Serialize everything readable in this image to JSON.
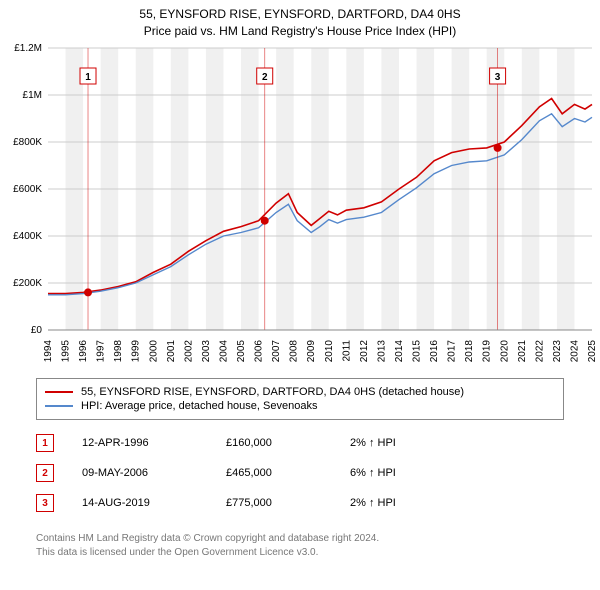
{
  "title_line1": "55, EYNSFORD RISE, EYNSFORD, DARTFORD, DA4 0HS",
  "title_line2": "Price paid vs. HM Land Registry's House Price Index (HPI)",
  "chart": {
    "type": "line",
    "background_color": "#ffffff",
    "grid_color": "#cccccc",
    "band_color": "#f0f0f0",
    "axis_font_size": 10,
    "x_years": [
      1994,
      1995,
      1996,
      1997,
      1998,
      1999,
      2000,
      2001,
      2002,
      2003,
      2004,
      2005,
      2006,
      2007,
      2008,
      2009,
      2010,
      2011,
      2012,
      2013,
      2014,
      2015,
      2016,
      2017,
      2018,
      2019,
      2020,
      2021,
      2022,
      2023,
      2024,
      2025
    ],
    "y": {
      "min": 0,
      "max": 1200000,
      "step": 200000,
      "labels": [
        "£0",
        "£200K",
        "£400K",
        "£600K",
        "£800K",
        "£1M",
        "£1.2M"
      ]
    },
    "series": [
      {
        "name": "55, EYNSFORD RISE, EYNSFORD, DARTFORD, DA4 0HS (detached house)",
        "color": "#d00000",
        "width": 1.6,
        "points": [
          [
            1994,
            155000
          ],
          [
            1995,
            155000
          ],
          [
            1996,
            160000
          ],
          [
            1997,
            170000
          ],
          [
            1998,
            185000
          ],
          [
            1999,
            205000
          ],
          [
            2000,
            245000
          ],
          [
            2001,
            280000
          ],
          [
            2002,
            335000
          ],
          [
            2003,
            380000
          ],
          [
            2004,
            420000
          ],
          [
            2005,
            440000
          ],
          [
            2006,
            465000
          ],
          [
            2007,
            540000
          ],
          [
            2007.7,
            580000
          ],
          [
            2008.2,
            500000
          ],
          [
            2009,
            445000
          ],
          [
            2009.5,
            475000
          ],
          [
            2010,
            505000
          ],
          [
            2010.5,
            490000
          ],
          [
            2011,
            510000
          ],
          [
            2012,
            520000
          ],
          [
            2013,
            545000
          ],
          [
            2014,
            600000
          ],
          [
            2015,
            650000
          ],
          [
            2016,
            720000
          ],
          [
            2017,
            755000
          ],
          [
            2018,
            770000
          ],
          [
            2019,
            775000
          ],
          [
            2020,
            800000
          ],
          [
            2021,
            870000
          ],
          [
            2022,
            950000
          ],
          [
            2022.7,
            985000
          ],
          [
            2023.3,
            920000
          ],
          [
            2024,
            960000
          ],
          [
            2024.6,
            940000
          ],
          [
            2025,
            960000
          ]
        ]
      },
      {
        "name": "HPI: Average price, detached house, Sevenoaks",
        "color": "#5588cc",
        "width": 1.4,
        "points": [
          [
            1994,
            150000
          ],
          [
            1995,
            150000
          ],
          [
            1996,
            155000
          ],
          [
            1997,
            165000
          ],
          [
            1998,
            180000
          ],
          [
            1999,
            200000
          ],
          [
            2000,
            235000
          ],
          [
            2001,
            270000
          ],
          [
            2002,
            320000
          ],
          [
            2003,
            365000
          ],
          [
            2004,
            400000
          ],
          [
            2005,
            415000
          ],
          [
            2006,
            435000
          ],
          [
            2007,
            500000
          ],
          [
            2007.7,
            535000
          ],
          [
            2008.2,
            465000
          ],
          [
            2009,
            415000
          ],
          [
            2009.5,
            440000
          ],
          [
            2010,
            470000
          ],
          [
            2010.5,
            455000
          ],
          [
            2011,
            470000
          ],
          [
            2012,
            480000
          ],
          [
            2013,
            500000
          ],
          [
            2014,
            555000
          ],
          [
            2015,
            605000
          ],
          [
            2016,
            665000
          ],
          [
            2017,
            700000
          ],
          [
            2018,
            715000
          ],
          [
            2019,
            720000
          ],
          [
            2020,
            745000
          ],
          [
            2021,
            810000
          ],
          [
            2022,
            890000
          ],
          [
            2022.7,
            920000
          ],
          [
            2023.3,
            865000
          ],
          [
            2024,
            900000
          ],
          [
            2024.6,
            885000
          ],
          [
            2025,
            905000
          ]
        ]
      }
    ],
    "sale_markers": [
      {
        "n": "1",
        "year": 1996.28,
        "price": 160000
      },
      {
        "n": "2",
        "year": 2006.35,
        "price": 465000
      },
      {
        "n": "3",
        "year": 2019.62,
        "price": 775000
      }
    ],
    "marker_box_color": "#d00000",
    "marker_dot_color": "#d00000"
  },
  "legend_items": [
    {
      "color": "#d00000",
      "label": "55, EYNSFORD RISE, EYNSFORD, DARTFORD, DA4 0HS (detached house)"
    },
    {
      "color": "#5588cc",
      "label": "HPI: Average price, detached house, Sevenoaks"
    }
  ],
  "sales": [
    {
      "n": "1",
      "date": "12-APR-1996",
      "price": "£160,000",
      "hpi": "2% ↑ HPI"
    },
    {
      "n": "2",
      "date": "09-MAY-2006",
      "price": "£465,000",
      "hpi": "6% ↑ HPI"
    },
    {
      "n": "3",
      "date": "14-AUG-2019",
      "price": "£775,000",
      "hpi": "2% ↑ HPI"
    }
  ],
  "footnote_line1": "Contains HM Land Registry data © Crown copyright and database right 2024.",
  "footnote_line2": "This data is licensed under the Open Government Licence v3.0."
}
